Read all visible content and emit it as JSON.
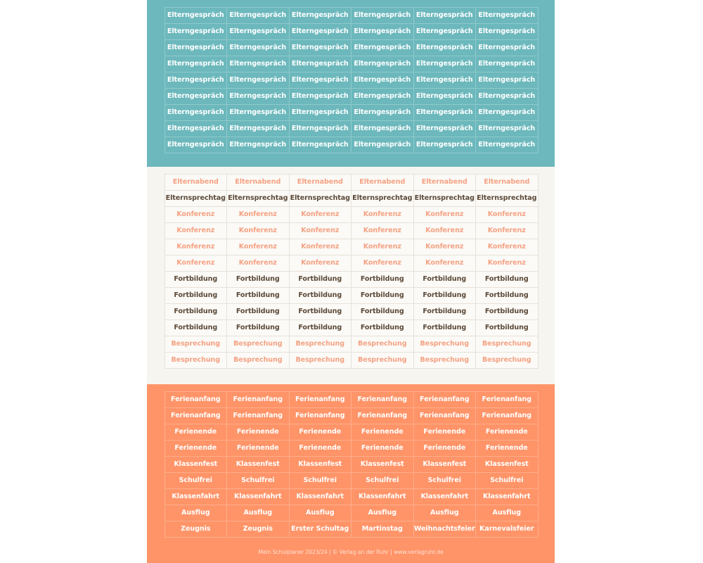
{
  "teal_section": {
    "rows": [
      [
        "Elterngespräch",
        "Elterngespräch",
        "Elterngespräch",
        "Elterngespräch",
        "Elterngespräch",
        "Elterngespräch"
      ],
      [
        "Elterngespräch",
        "Elterngespräch",
        "Elterngespräch",
        "Elterngespräch",
        "Elterngespräch",
        "Elterngespräch"
      ],
      [
        "Elterngespräch",
        "Elterngespräch",
        "Elterngespräch",
        "Elterngespräch",
        "Elterngespräch",
        "Elterngespräch"
      ],
      [
        "Elterngespräch",
        "Elterngespräch",
        "Elterngespräch",
        "Elterngespräch",
        "Elterngespräch",
        "Elterngespräch"
      ],
      [
        "Elterngespräch",
        "Elterngespräch",
        "Elterngespräch",
        "Elterngespräch",
        "Elterngespräch",
        "Elterngespräch"
      ],
      [
        "Elterngespräch",
        "Elterngespräch",
        "Elterngespräch",
        "Elterngespräch",
        "Elterngespräch",
        "Elterngespräch"
      ],
      [
        "Elterngespräch",
        "Elterngespräch",
        "Elterngespräch",
        "Elterngespräch",
        "Elterngespräch",
        "Elterngespräch"
      ],
      [
        "Elterngespräch",
        "Elterngespräch",
        "Elterngespräch",
        "Elterngespräch",
        "Elterngespräch",
        "Elterngespräch"
      ],
      [
        "Elterngespräch",
        "Elterngespräch",
        "Elterngespräch",
        "Elterngespräch",
        "Elterngespräch",
        "Elterngespräch"
      ]
    ]
  },
  "cream_section": {
    "rows": [
      {
        "style": "salmon",
        "cells": [
          "Elternabend",
          "Elternabend",
          "Elternabend",
          "Elternabend",
          "Elternabend",
          "Elternabend"
        ]
      },
      {
        "style": "brown",
        "cells": [
          "Elternsprechtag",
          "Elternsprechtag",
          "Elternsprechtag",
          "Elternsprechtag",
          "Elternsprechtag",
          "Elternsprechtag"
        ]
      },
      {
        "style": "salmon",
        "cells": [
          "Konferenz",
          "Konferenz",
          "Konferenz",
          "Konferenz",
          "Konferenz",
          "Konferenz"
        ]
      },
      {
        "style": "salmon",
        "cells": [
          "Konferenz",
          "Konferenz",
          "Konferenz",
          "Konferenz",
          "Konferenz",
          "Konferenz"
        ]
      },
      {
        "style": "salmon",
        "cells": [
          "Konferenz",
          "Konferenz",
          "Konferenz",
          "Konferenz",
          "Konferenz",
          "Konferenz"
        ]
      },
      {
        "style": "salmon",
        "cells": [
          "Konferenz",
          "Konferenz",
          "Konferenz",
          "Konferenz",
          "Konferenz",
          "Konferenz"
        ]
      },
      {
        "style": "brown",
        "cells": [
          "Fortbildung",
          "Fortbildung",
          "Fortbildung",
          "Fortbildung",
          "Fortbildung",
          "Fortbildung"
        ]
      },
      {
        "style": "brown",
        "cells": [
          "Fortbildung",
          "Fortbildung",
          "Fortbildung",
          "Fortbildung",
          "Fortbildung",
          "Fortbildung"
        ]
      },
      {
        "style": "brown",
        "cells": [
          "Fortbildung",
          "Fortbildung",
          "Fortbildung",
          "Fortbildung",
          "Fortbildung",
          "Fortbildung"
        ]
      },
      {
        "style": "brown",
        "cells": [
          "Fortbildung",
          "Fortbildung",
          "Fortbildung",
          "Fortbildung",
          "Fortbildung",
          "Fortbildung"
        ]
      },
      {
        "style": "salmon",
        "cells": [
          "Besprechung",
          "Besprechung",
          "Besprechung",
          "Besprechung",
          "Besprechung",
          "Besprechung"
        ]
      },
      {
        "style": "salmon",
        "cells": [
          "Besprechung",
          "Besprechung",
          "Besprechung",
          "Besprechung",
          "Besprechung",
          "Besprechung"
        ]
      }
    ]
  },
  "orange_section": {
    "rows": [
      [
        "Ferienanfang",
        "Ferienanfang",
        "Ferienanfang",
        "Ferienanfang",
        "Ferienanfang",
        "Ferienanfang"
      ],
      [
        "Ferienanfang",
        "Ferienanfang",
        "Ferienanfang",
        "Ferienanfang",
        "Ferienanfang",
        "Ferienanfang"
      ],
      [
        "Ferienende",
        "Ferienende",
        "Ferienende",
        "Ferienende",
        "Ferienende",
        "Ferienende"
      ],
      [
        "Ferienende",
        "Ferienende",
        "Ferienende",
        "Ferienende",
        "Ferienende",
        "Ferienende"
      ],
      [
        "Klassenfest",
        "Klassenfest",
        "Klassenfest",
        "Klassenfest",
        "Klassenfest",
        "Klassenfest"
      ],
      [
        "Schulfrei",
        "Schulfrei",
        "Schulfrei",
        "Schulfrei",
        "Schulfrei",
        "Schulfrei"
      ],
      [
        "Klassenfahrt",
        "Klassenfahrt",
        "Klassenfahrt",
        "Klassenfahrt",
        "Klassenfahrt",
        "Klassenfahrt"
      ],
      [
        "Ausflug",
        "Ausflug",
        "Ausflug",
        "Ausflug",
        "Ausflug",
        "Ausflug"
      ],
      [
        "Zeugnis",
        "Zeugnis",
        "Erster Schultag",
        "Martinstag",
        "Weihnachtsfeier",
        "Karnevalsfeier"
      ]
    ]
  },
  "footer": {
    "text": "Mein Schulplaner 2023/24 | © Verlag an der Ruhr | www.verlagruhr.de"
  },
  "colors": {
    "teal": "#6cb8bc",
    "cream": "#f7f5f0",
    "orange": "#ff9468",
    "salmon_text": "#f5a283",
    "brown_text": "#5c4a38"
  }
}
